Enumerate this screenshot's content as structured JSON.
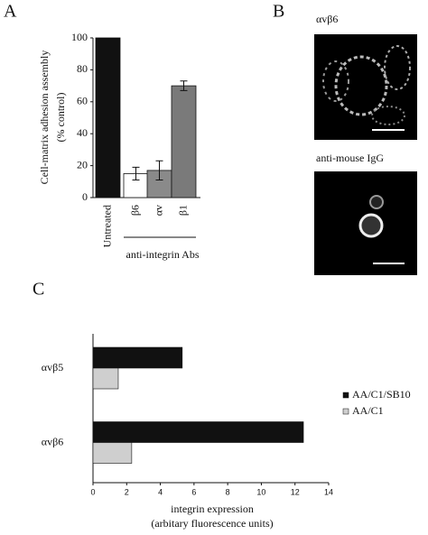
{
  "chart_data": [
    {
      "type": "bar",
      "label": "A",
      "y_label": [
        "Cell-matrix adhesion assembly",
        "(% control)"
      ],
      "categories": [
        "Untreated",
        "β6",
        "αv",
        "β1"
      ],
      "values": [
        100,
        15,
        17,
        70
      ],
      "errors": [
        null,
        4,
        6,
        3
      ],
      "colors": [
        "#111111",
        "#ffffff",
        "#8a8a8a",
        "#7a7a7a"
      ],
      "group_label": "anti-integrin Abs",
      "ylim": [
        0,
        100
      ],
      "yticks": [
        0,
        20,
        40,
        60,
        80,
        100
      ]
    },
    {
      "type": "hbar",
      "label": "C",
      "categories": [
        "αvβ5",
        "αvβ6"
      ],
      "series": [
        {
          "name": "AA/C1/SB10",
          "color": "#111111",
          "values": [
            5.3,
            12.5
          ]
        },
        {
          "name": "AA/C1",
          "color": "#cfcfcf",
          "values": [
            1.5,
            2.3
          ]
        }
      ],
      "x_label": [
        "integrin expression",
        "(arbitary fluorescence units)"
      ],
      "xlim": [
        0,
        14
      ],
      "xticks": [
        0,
        2,
        4,
        6,
        8,
        10,
        12,
        14
      ],
      "legend": "right"
    }
  ],
  "panel_b": {
    "label": "B",
    "images": [
      "αvβ6",
      "anti-mouse IgG"
    ]
  }
}
